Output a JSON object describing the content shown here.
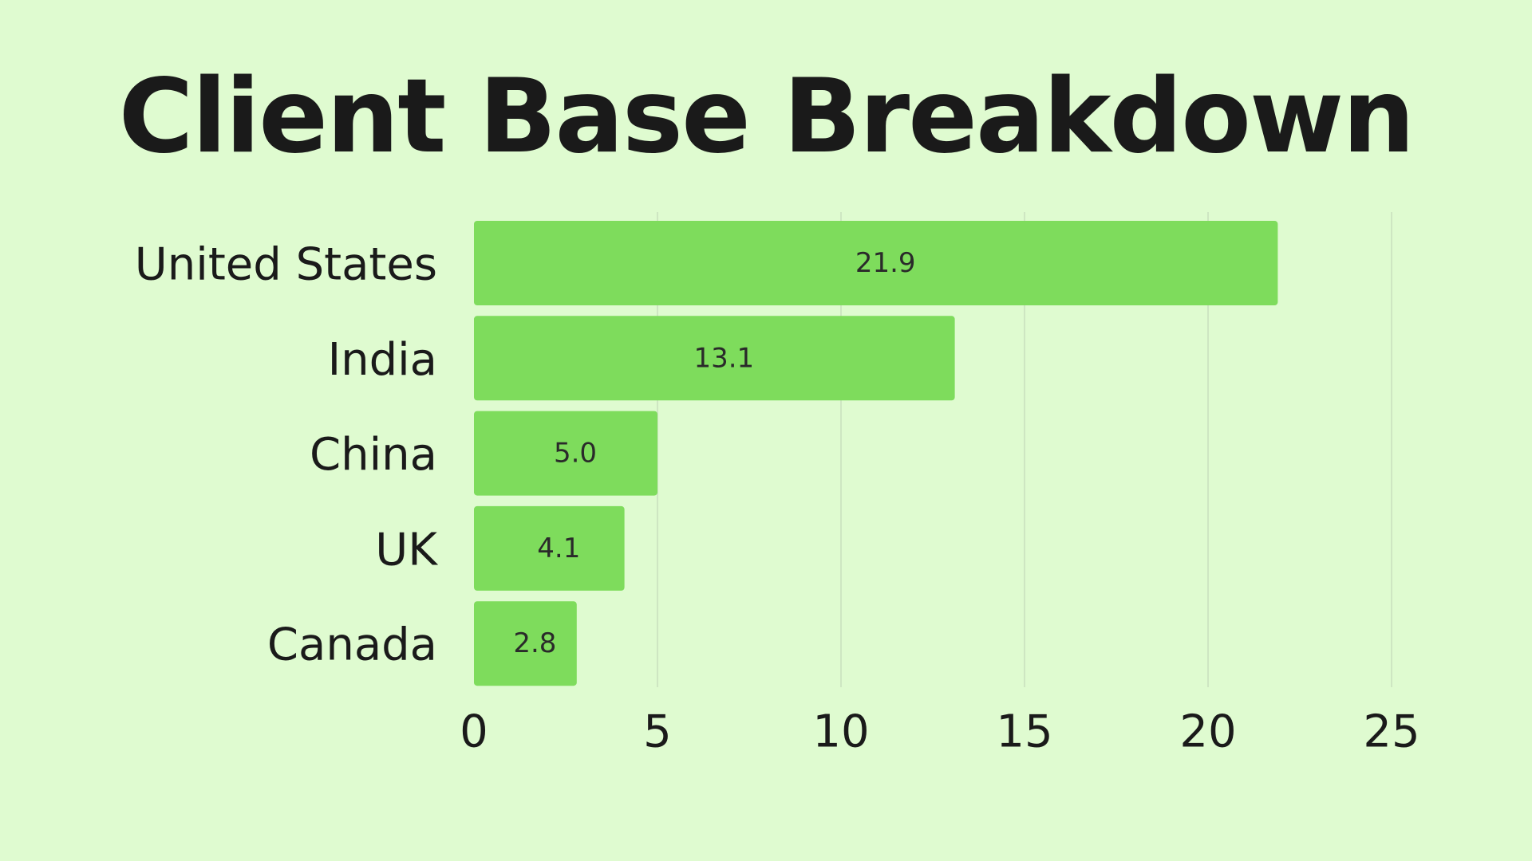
{
  "colors": {
    "background": "#DFFBD0",
    "bar": "#7EDC5C",
    "text": "#1A1A1A",
    "grid": "#C8DFBE"
  },
  "chart_data": {
    "type": "bar",
    "orientation": "horizontal",
    "title": "Client Base Breakdown",
    "xlabel": "",
    "ylabel": "",
    "categories": [
      "United States",
      "India",
      "China",
      "UK",
      "Canada"
    ],
    "values": [
      21.9,
      13.1,
      5.0,
      4.1,
      2.8
    ],
    "value_labels": [
      "21.9",
      "13.1",
      "5.0",
      "4.1",
      "2.8"
    ],
    "xlim": [
      0,
      25
    ],
    "xticks": [
      0,
      5,
      10,
      15,
      20,
      25
    ],
    "xtick_labels": [
      "0",
      "5",
      "10",
      "15",
      "20",
      "25"
    ],
    "grid": "vertical",
    "legend": "none"
  }
}
